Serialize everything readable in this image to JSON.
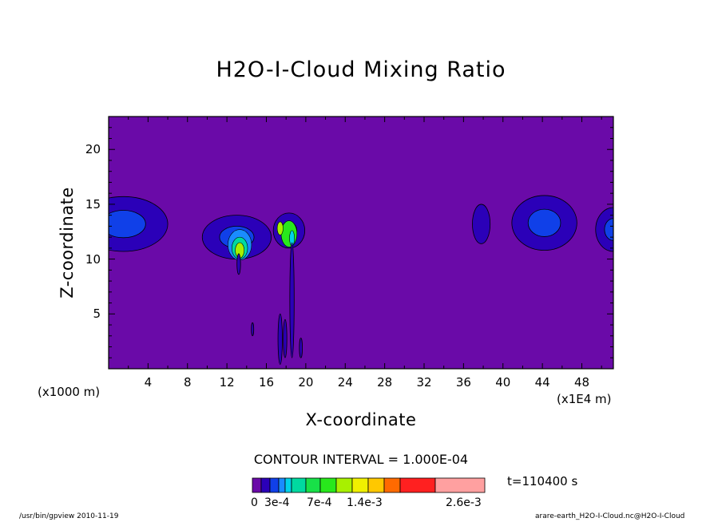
{
  "chart_data": {
    "type": "contour",
    "title": "H2O-I-Cloud Mixing Ratio",
    "xlabel": "X-coordinate",
    "ylabel": "Z-coordinate",
    "xunit_left": "(x1000 m)",
    "xunit_right": "(x1E4 m)",
    "xlim": [
      0,
      51.2
    ],
    "ylim": [
      0,
      23
    ],
    "x_ticks": [
      "4",
      "8",
      "12",
      "16",
      "20",
      "24",
      "28",
      "32",
      "36",
      "40",
      "44",
      "48"
    ],
    "x_tick_values": [
      4,
      8,
      12,
      16,
      20,
      24,
      28,
      32,
      36,
      40,
      44,
      48
    ],
    "y_ticks": [
      "5",
      "10",
      "15",
      "20"
    ],
    "y_tick_values": [
      5,
      10,
      15,
      20
    ],
    "contour_interval": "CONTOUR INTERVAL = 1.000E-04",
    "time": "t=110400 s",
    "colorbar": {
      "colors": [
        "#6a0aa8",
        "#2b00b8",
        "#1040e8",
        "#1a8cff",
        "#00d2e8",
        "#00d9a0",
        "#18e048",
        "#28e81c",
        "#a8f000",
        "#f0f000",
        "#ffc800",
        "#ff6a00",
        "#ff2020",
        "#ffa0a0"
      ],
      "labels": [
        "0",
        "3e-4",
        "7e-4",
        "1.4e-3",
        "2.6e-3"
      ]
    },
    "features": [
      {
        "name": "cloud-left",
        "x": 1.5,
        "z": 13.2,
        "rx": 4.5,
        "rz": 2.5
      },
      {
        "name": "cloud-12",
        "x": 13.0,
        "z": 12.0,
        "rx": 3.5,
        "rz": 2.0
      },
      {
        "name": "cloud-18",
        "x": 18.3,
        "z": 12.6,
        "rx": 1.6,
        "rz": 1.6
      },
      {
        "name": "cloud-37",
        "x": 37.8,
        "z": 13.2,
        "rx": 0.9,
        "rz": 1.8
      },
      {
        "name": "cloud-44",
        "x": 44.2,
        "z": 13.3,
        "rx": 3.3,
        "rz": 2.5
      },
      {
        "name": "cloud-right",
        "x": 51.2,
        "z": 12.7,
        "rx": 1.8,
        "rz": 2.0
      }
    ]
  },
  "footer": {
    "left": "/usr/bin/gpview   2010-11-19",
    "right": "arare-earth_H2O-I-Cloud.nc@H2O-I-Cloud"
  }
}
